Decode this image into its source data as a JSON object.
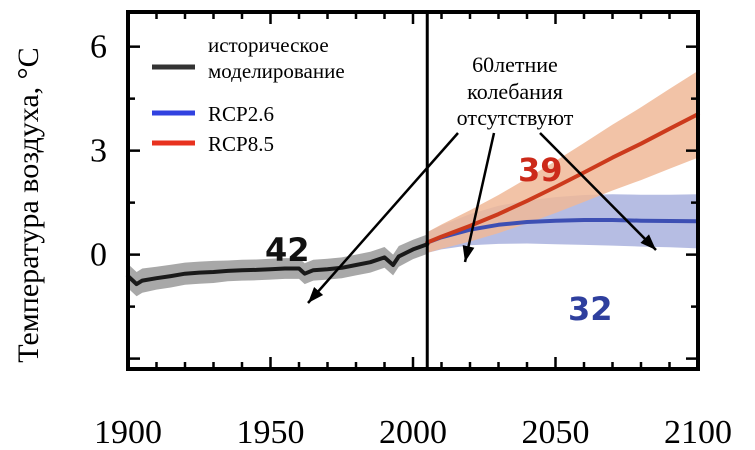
{
  "chart_data": {
    "type": "line",
    "ylabel": "Температура воздуха, °С",
    "xlabel": "",
    "xlim": [
      1900,
      2100
    ],
    "ylim": [
      -3.3,
      7
    ],
    "x_ticks": [
      1900,
      1950,
      2000,
      2050,
      2100
    ],
    "y_ticks": [
      0,
      3,
      6
    ],
    "divider_year": 2005,
    "series": [
      {
        "name": "историческое моделирование",
        "color": "#1a1a1a",
        "band_color": "#999999",
        "x": [
          1900,
          1903,
          1905,
          1910,
          1915,
          1920,
          1925,
          1930,
          1935,
          1940,
          1945,
          1950,
          1955,
          1960,
          1962,
          1965,
          1970,
          1975,
          1980,
          1985,
          1990,
          1993,
          1995,
          2000,
          2005
        ],
        "y": [
          -0.62,
          -0.85,
          -0.75,
          -0.68,
          -0.62,
          -0.55,
          -0.52,
          -0.5,
          -0.47,
          -0.45,
          -0.44,
          -0.42,
          -0.4,
          -0.4,
          -0.55,
          -0.45,
          -0.42,
          -0.38,
          -0.3,
          -0.22,
          -0.08,
          -0.3,
          -0.05,
          0.15,
          0.3
        ],
        "spread": [
          0.35,
          0.35,
          0.35,
          0.33,
          0.33,
          0.32,
          0.32,
          0.32,
          0.3,
          0.3,
          0.3,
          0.3,
          0.3,
          0.3,
          0.3,
          0.3,
          0.3,
          0.3,
          0.3,
          0.3,
          0.3,
          0.3,
          0.3,
          0.28,
          0.28
        ]
      },
      {
        "name": "RCP2.6",
        "color": "#3d4fb3",
        "band_color": "#a9b2de",
        "x": [
          2005,
          2010,
          2020,
          2030,
          2040,
          2050,
          2060,
          2070,
          2080,
          2090,
          2100
        ],
        "y": [
          0.35,
          0.5,
          0.72,
          0.86,
          0.94,
          0.98,
          1.0,
          1.0,
          0.98,
          0.97,
          0.96
        ],
        "spread": [
          0.3,
          0.35,
          0.45,
          0.55,
          0.62,
          0.68,
          0.72,
          0.74,
          0.75,
          0.76,
          0.78
        ]
      },
      {
        "name": "RCP8.5",
        "color": "#cc3a1c",
        "band_color": "#f0b998",
        "x": [
          2005,
          2010,
          2020,
          2030,
          2040,
          2050,
          2060,
          2070,
          2080,
          2090,
          2100
        ],
        "y": [
          0.35,
          0.52,
          0.83,
          1.17,
          1.55,
          1.95,
          2.37,
          2.8,
          3.2,
          3.63,
          4.05
        ],
        "spread": [
          0.3,
          0.35,
          0.45,
          0.55,
          0.65,
          0.75,
          0.85,
          0.95,
          1.05,
          1.15,
          1.25
        ]
      }
    ],
    "legend": [
      {
        "label_lines": [
          "историческое",
          "моделирование"
        ],
        "color": "#333333"
      },
      {
        "label_lines": [
          "RCP2.6"
        ],
        "color": "#3142e0"
      },
      {
        "label_lines": [
          "RCP8.5"
        ],
        "color": "#e8321f"
      }
    ],
    "annotation": {
      "lines": [
        "60летние",
        "колебания",
        "отсутствуют"
      ]
    },
    "model_counts": [
      {
        "text": "42",
        "color": "#111111"
      },
      {
        "text": "39",
        "color": "#cc2a1a"
      },
      {
        "text": "32",
        "color": "#2e3f9e"
      }
    ]
  }
}
